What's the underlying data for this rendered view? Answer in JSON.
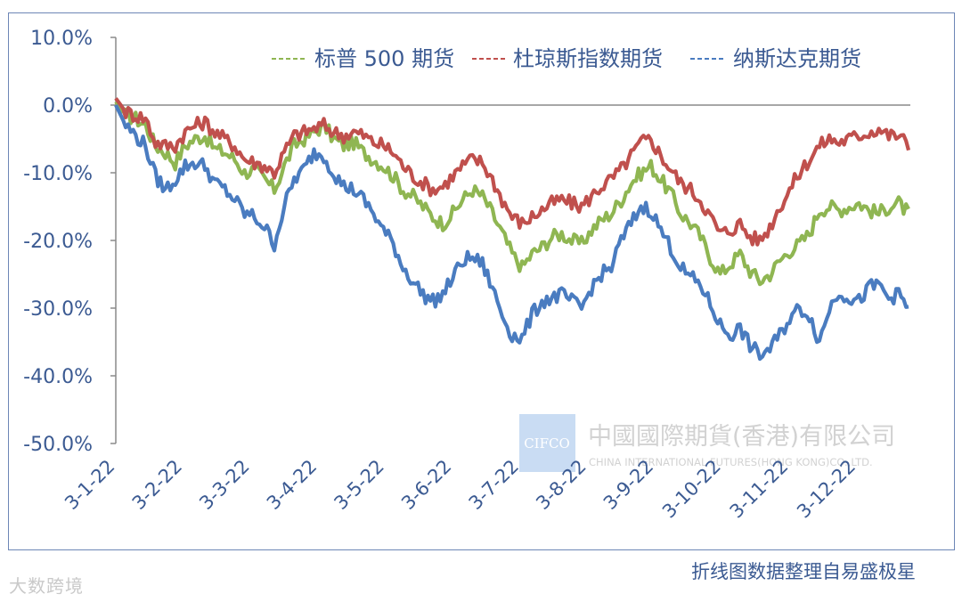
{
  "chart_data": {
    "type": "line",
    "title": "",
    "xlabel": "",
    "ylabel": "",
    "ylim": [
      -50,
      10
    ],
    "yticks": [
      "10.0%",
      "0.0%",
      "-10.0%",
      "-20.0%",
      "-30.0%",
      "-40.0%",
      "-50.0%"
    ],
    "xtick_labels": [
      "3-1-22",
      "3-2-22",
      "3-3-22",
      "3-4-22",
      "3-5-22",
      "3-6-22",
      "3-7-22",
      "3-8-22",
      "3-9-22",
      "3-10-22",
      "3-11-22",
      "3-12-22"
    ],
    "grid": false,
    "legend_position": "top",
    "series": [
      {
        "name": "标普 500 期货",
        "color": "#8fb652",
        "values": [
          0.5,
          -1.5,
          -2.0,
          -3.0,
          -6.0,
          -7.0,
          -8.5,
          -6.0,
          -5.0,
          -4.5,
          -6.5,
          -7.0,
          -8.0,
          -10.0,
          -9.5,
          -11.0,
          -12.5,
          -9.0,
          -6.0,
          -5.0,
          -4.0,
          -3.0,
          -5.0,
          -6.0,
          -5.5,
          -7.0,
          -8.0,
          -9.0,
          -10.5,
          -12.5,
          -13.5,
          -15.0,
          -16.5,
          -17.5,
          -16.0,
          -14.0,
          -12.5,
          -13.5,
          -16.0,
          -19.0,
          -22.0,
          -24.0,
          -22.0,
          -21.0,
          -19.5,
          -19.0,
          -20.0,
          -20.5,
          -18.5,
          -17.0,
          -16.0,
          -14.0,
          -11.5,
          -10.0,
          -9.0,
          -11.0,
          -13.0,
          -16.0,
          -17.5,
          -19.5,
          -22.5,
          -25.0,
          -23.5,
          -22.0,
          -24.5,
          -26.0,
          -25.0,
          -23.0,
          -21.5,
          -20.5,
          -19.0,
          -15.5,
          -15.0,
          -15.5,
          -15.0,
          -14.5,
          -15.5,
          -16.0,
          -15.0,
          -14.5,
          -16.0
        ],
        "start": 0.0,
        "end": 16.5
      },
      {
        "name": "杜琼斯指数期货",
        "color": "#c0504d",
        "values": [
          1.0,
          -1.0,
          -1.5,
          -2.0,
          -5.5,
          -6.0,
          -6.0,
          -4.0,
          -3.0,
          -2.5,
          -4.0,
          -5.0,
          -6.0,
          -8.0,
          -8.5,
          -9.0,
          -10.0,
          -7.0,
          -4.5,
          -4.0,
          -3.5,
          -3.0,
          -4.0,
          -4.5,
          -4.0,
          -4.5,
          -5.5,
          -6.0,
          -7.0,
          -9.0,
          -10.5,
          -11.5,
          -12.5,
          -12.0,
          -10.5,
          -9.0,
          -8.0,
          -8.5,
          -11.0,
          -14.0,
          -16.5,
          -17.5,
          -16.5,
          -15.5,
          -14.5,
          -14.0,
          -14.5,
          -15.0,
          -13.5,
          -12.0,
          -11.0,
          -9.5,
          -7.5,
          -5.5,
          -5.0,
          -7.5,
          -9.5,
          -11.5,
          -12.5,
          -14.0,
          -16.5,
          -19.0,
          -18.5,
          -17.5,
          -19.5,
          -20.0,
          -18.0,
          -15.0,
          -12.5,
          -10.0,
          -8.0,
          -6.0,
          -5.0,
          -5.5,
          -5.0,
          -4.5,
          -4.0,
          -3.5,
          -4.5,
          -4.5,
          -6.0
        ],
        "start": 0.0,
        "end": 16.5
      },
      {
        "name": "纳斯达克期货",
        "color": "#4a7cc0",
        "values": [
          0.0,
          -3.0,
          -4.5,
          -6.0,
          -10.5,
          -12.5,
          -11.0,
          -9.0,
          -8.5,
          -9.0,
          -11.5,
          -12.5,
          -14.0,
          -16.0,
          -16.5,
          -18.0,
          -20.5,
          -15.0,
          -11.0,
          -9.5,
          -7.0,
          -7.5,
          -10.0,
          -12.0,
          -12.5,
          -14.0,
          -16.0,
          -18.5,
          -20.5,
          -24.0,
          -26.0,
          -28.0,
          -29.0,
          -28.0,
          -25.5,
          -23.0,
          -22.5,
          -23.5,
          -27.0,
          -31.0,
          -34.0,
          -34.5,
          -31.0,
          -29.0,
          -28.5,
          -28.0,
          -29.0,
          -30.0,
          -27.0,
          -25.0,
          -24.0,
          -20.0,
          -17.5,
          -15.0,
          -15.5,
          -18.5,
          -21.0,
          -24.0,
          -25.5,
          -26.5,
          -29.5,
          -32.5,
          -34.0,
          -33.0,
          -35.5,
          -37.0,
          -36.0,
          -34.0,
          -31.5,
          -30.0,
          -31.0,
          -35.0,
          -30.0,
          -27.5,
          -28.5,
          -29.0,
          -27.0,
          -26.5,
          -28.5,
          -28.0,
          -30.0
        ],
        "start": 0.0,
        "end": 16.5
      }
    ]
  },
  "watermark": {
    "logo_text": "CIFCO",
    "company_cn": "中國國際期貨(香港)有限公司",
    "company_en": "CHINA INTERNATIONAL FUTURES(HONG KONG)CO.,LTD."
  },
  "source_note": "折线图数据整理自易盛极星",
  "corner_mark": "大数跨境"
}
